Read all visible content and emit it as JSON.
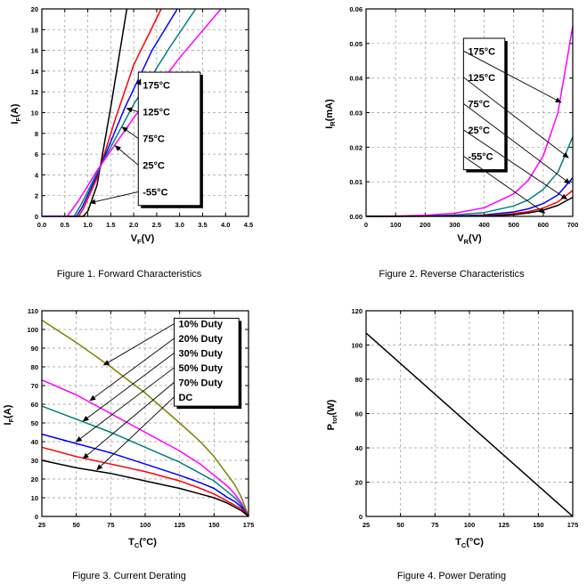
{
  "chart_data": [
    {
      "type": "line",
      "caption": "Figure 1. Forward Characteristics",
      "xlabel": "VF(V)",
      "ylabel": "IF(A)",
      "xlabel_main": "V",
      "xlabel_sub": "F",
      "xlabel_tail": "(V)",
      "ylabel_main": "I",
      "ylabel_sub": "F",
      "ylabel_tail": "(A)",
      "xlim": [
        0,
        4.5
      ],
      "ylim": [
        0,
        20
      ],
      "xticks": [
        "0.0",
        "0.5",
        "1.0",
        "1.5",
        "2.0",
        "2.5",
        "3.0",
        "3.5",
        "4.0",
        "4.5"
      ],
      "yticks": [
        "0",
        "2",
        "4",
        "6",
        "8",
        "10",
        "12",
        "14",
        "16",
        "18",
        "20"
      ],
      "grid": true,
      "legend": [
        {
          "label": "175°C",
          "arrow_to": [
            2.15,
            13.2
          ]
        },
        {
          "label": "125°C",
          "arrow_to": [
            1.85,
            10.4
          ]
        },
        {
          "label": "75°C",
          "arrow_to": [
            1.75,
            8.6
          ]
        },
        {
          "label": "25°C",
          "arrow_to": [
            1.6,
            6.8
          ]
        },
        {
          "label": "-55°C",
          "arrow_to": [
            1.05,
            1.3
          ]
        }
      ],
      "legend_box": [
        2.1,
        3.45,
        1.05,
        13.9
      ],
      "series": [
        {
          "name": "-55°C",
          "color": "#000000",
          "x": [
            0,
            0.9,
            1.0,
            1.2,
            1.5,
            1.85
          ],
          "y": [
            0,
            0,
            0.5,
            3,
            10.5,
            20
          ]
        },
        {
          "name": "25°C",
          "color": "#ff0000",
          "x": [
            0,
            0.8,
            0.9,
            1.2,
            1.6,
            2.0,
            2.6
          ],
          "y": [
            0,
            0,
            0.7,
            3.7,
            9.4,
            14.6,
            20
          ]
        },
        {
          "name": "75°C",
          "color": "#0000ff",
          "x": [
            0,
            0.75,
            0.88,
            1.2,
            1.8,
            2.4,
            2.95
          ],
          "y": [
            0,
            0,
            0.9,
            4,
            10.4,
            16,
            20
          ]
        },
        {
          "name": "125°C",
          "color": "#008080",
          "x": [
            0,
            0.7,
            0.85,
            1.2,
            2.0,
            2.8,
            3.35
          ],
          "y": [
            0,
            0,
            1.1,
            4.2,
            10.8,
            16.4,
            20
          ]
        },
        {
          "name": "175°C",
          "color": "#ff00ff",
          "x": [
            0,
            0.55,
            0.8,
            1.2,
            2.0,
            3.0,
            3.9
          ],
          "y": [
            0,
            0,
            1.5,
            4.4,
            9.5,
            15.3,
            20
          ]
        }
      ]
    },
    {
      "type": "line",
      "caption": "Figure 2. Reverse Characteristics",
      "xlabel": "VR(V)",
      "ylabel": "IR(mA)",
      "xlabel_main": "V",
      "xlabel_sub": "R",
      "xlabel_tail": "(V)",
      "ylabel_main": "I",
      "ylabel_sub": "R",
      "ylabel_tail": "(mA)",
      "xlim": [
        0,
        700
      ],
      "ylim": [
        0,
        0.06
      ],
      "xticks": [
        "0",
        "100",
        "200",
        "300",
        "400",
        "500",
        "600",
        "700"
      ],
      "yticks": [
        "0.00",
        "0.01",
        "0.02",
        "0.03",
        "0.04",
        "0.05",
        "0.06"
      ],
      "grid": true,
      "legend": [
        {
          "label": "175°C",
          "arrow_to": [
            660,
            0.033
          ]
        },
        {
          "label": "125°C",
          "arrow_to": [
            685,
            0.017
          ]
        },
        {
          "label": "75°C",
          "arrow_to": [
            690,
            0.0095
          ]
        },
        {
          "label": "25°C",
          "arrow_to": [
            680,
            0.005
          ]
        },
        {
          "label": "-55°C",
          "arrow_to": [
            605,
            0.001
          ]
        }
      ],
      "legend_box": [
        330,
        470,
        0.0135,
        0.0515
      ],
      "series": [
        {
          "name": "175°C",
          "color": "#ff00ff",
          "x": [
            0,
            100,
            200,
            300,
            400,
            500,
            550,
            600,
            650,
            700
          ],
          "y": [
            0,
            0.0001,
            0.0003,
            0.0009,
            0.0025,
            0.0065,
            0.0105,
            0.0175,
            0.03,
            0.055
          ]
        },
        {
          "name": "125°C",
          "color": "#008080",
          "x": [
            0,
            200,
            300,
            400,
            500,
            550,
            600,
            650,
            700
          ],
          "y": [
            0,
            0.0001,
            0.0004,
            0.0011,
            0.003,
            0.0048,
            0.0078,
            0.0128,
            0.023
          ]
        },
        {
          "name": "75°C",
          "color": "#0000ff",
          "x": [
            0,
            300,
            400,
            500,
            550,
            600,
            650,
            700
          ],
          "y": [
            0,
            0.0001,
            0.0004,
            0.0013,
            0.0022,
            0.0037,
            0.0062,
            0.0112
          ]
        },
        {
          "name": "25°C",
          "color": "#ff0000",
          "x": [
            0,
            350,
            450,
            500,
            550,
            600,
            650,
            700
          ],
          "y": [
            0,
            0.0001,
            0.0004,
            0.0008,
            0.0014,
            0.0024,
            0.0042,
            0.0075
          ]
        },
        {
          "name": "-55°C",
          "color": "#000000",
          "x": [
            0,
            400,
            500,
            550,
            600,
            650,
            700
          ],
          "y": [
            0,
            0.0001,
            0.0005,
            0.001,
            0.0018,
            0.0032,
            0.0055
          ]
        }
      ]
    },
    {
      "type": "line",
      "caption": "Figure 3. Current Derating",
      "xlabel": "TC(°C)",
      "ylabel": "IF(A)",
      "xlabel_main": "T",
      "xlabel_sub": "C",
      "xlabel_tail": "(°C)",
      "ylabel_main": "I",
      "ylabel_sub": "F",
      "ylabel_tail": "(A)",
      "xlim": [
        25,
        175
      ],
      "ylim": [
        0,
        110
      ],
      "xticks": [
        "25",
        "50",
        "75",
        "100",
        "125",
        "150",
        "175"
      ],
      "yticks": [
        "0",
        "10",
        "20",
        "30",
        "40",
        "50",
        "60",
        "70",
        "80",
        "90",
        "100",
        "110"
      ],
      "grid": true,
      "legend": [
        {
          "label": "10% Duty",
          "arrow_to": [
            70,
            81
          ]
        },
        {
          "label": "20% Duty",
          "arrow_to": [
            60,
            62
          ]
        },
        {
          "label": "30% Duty",
          "arrow_to": [
            55,
            51
          ]
        },
        {
          "label": "50% Duty",
          "arrow_to": [
            50,
            40
          ]
        },
        {
          "label": "70% Duty",
          "arrow_to": [
            55,
            31
          ]
        },
        {
          "label": "DC",
          "arrow_to": [
            65,
            25
          ]
        }
      ],
      "legend_box": [
        121,
        168,
        59,
        106
      ],
      "series": [
        {
          "name": "10% Duty",
          "color": "#808000",
          "x": [
            25,
            50,
            75,
            100,
            125,
            140,
            150,
            160,
            165,
            170,
            175
          ],
          "y": [
            105,
            93,
            80,
            66,
            50,
            40,
            32,
            22,
            17,
            10,
            0
          ]
        },
        {
          "name": "20% Duty",
          "color": "#ff00ff",
          "x": [
            25,
            50,
            75,
            100,
            125,
            140,
            150,
            160,
            165,
            170,
            175
          ],
          "y": [
            73,
            65,
            55,
            45,
            35,
            28,
            22,
            16,
            12,
            7,
            0
          ]
        },
        {
          "name": "30% Duty",
          "color": "#008080",
          "x": [
            25,
            50,
            75,
            100,
            125,
            140,
            150,
            160,
            165,
            170,
            175
          ],
          "y": [
            59,
            52,
            45,
            37,
            29,
            23,
            19,
            13,
            10,
            6,
            0
          ]
        },
        {
          "name": "50% Duty",
          "color": "#0000ff",
          "x": [
            25,
            50,
            75,
            100,
            125,
            140,
            150,
            160,
            165,
            170,
            175
          ],
          "y": [
            44,
            39,
            34,
            28,
            22,
            18,
            15,
            10,
            8,
            5,
            0
          ]
        },
        {
          "name": "70% Duty",
          "color": "#ff0000",
          "x": [
            25,
            50,
            75,
            100,
            125,
            140,
            150,
            160,
            165,
            170,
            175
          ],
          "y": [
            37,
            32,
            28,
            24,
            19,
            15,
            12,
            8,
            6,
            4,
            0
          ]
        },
        {
          "name": "DC",
          "color": "#000000",
          "x": [
            25,
            50,
            75,
            100,
            125,
            140,
            150,
            160,
            165,
            170,
            175
          ],
          "y": [
            30,
            26,
            23,
            19,
            15,
            12,
            10,
            7,
            5,
            3,
            0
          ]
        }
      ]
    },
    {
      "type": "line",
      "caption": "Figure 4. Power Derating",
      "xlabel": "TC(°C)",
      "ylabel": "Ptot(W)",
      "xlabel_main": "T",
      "xlabel_sub": "C",
      "xlabel_tail": "(°C)",
      "ylabel_main": "P",
      "ylabel_sub": "tot",
      "ylabel_tail": "(W)",
      "xlim": [
        25,
        175
      ],
      "ylim": [
        0,
        120
      ],
      "xticks": [
        "25",
        "50",
        "75",
        "100",
        "125",
        "150",
        "175"
      ],
      "yticks": [
        "0",
        "20",
        "40",
        "60",
        "80",
        "100",
        "120"
      ],
      "grid": true,
      "legend": [],
      "series": [
        {
          "name": "",
          "color": "#000000",
          "x": [
            25,
            175
          ],
          "y": [
            107,
            0
          ]
        }
      ]
    }
  ]
}
